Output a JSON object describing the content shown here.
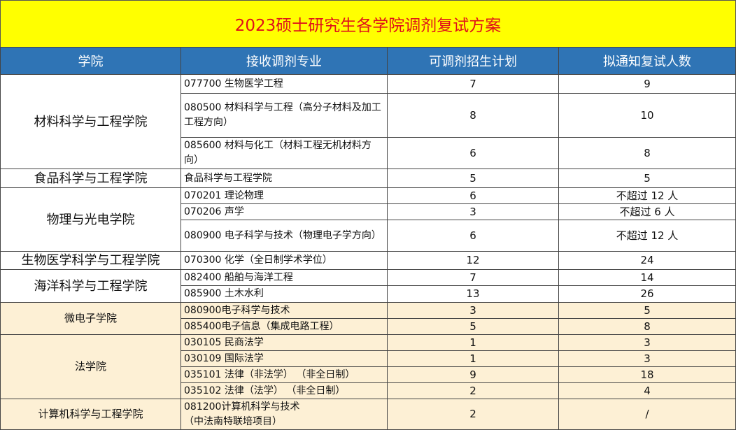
{
  "title": "2023硕士研究生各学院调剂复试方案",
  "table": {
    "header": [
      "学院",
      "接收调剂专业",
      "可调剂招生计划",
      "拟通知复试人数"
    ],
    "groups": [
      {
        "college": "材料科学与工程学院",
        "rows": [
          [
            "077700 生物医学工程",
            7,
            9
          ],
          [
            "080500 材料科学与工程（高分子材料及加工工程方向）",
            8,
            10
          ],
          [
            "085600 材料与化工（材料工程无机材料方向）",
            6,
            8
          ]
        ]
      },
      {
        "college": "食品科学与工程学院",
        "rows": [
          [
            "食品科学与工程学院",
            5,
            5
          ]
        ]
      },
      {
        "college": "物理与光电学院",
        "rows": [
          [
            "070201 理论物理",
            6,
            "不超过 12 人"
          ],
          [
            "070206 声学",
            3,
            "不超过 6 人"
          ],
          [
            "080900 电子科学与技术（物理电子学方向）",
            6,
            "不超过 12 人"
          ]
        ]
      },
      {
        "college": "生物医学科学与工程学院",
        "rows": [
          [
            "070300 化学（全日制学术学位）",
            12,
            24
          ]
        ]
      },
      {
        "college": "海洋科学与工程学院",
        "rows": [
          [
            "082400 船舶与海洋工程",
            7,
            14
          ],
          [
            "085900 土木水利",
            13,
            26
          ]
        ]
      },
      {
        "college": "微电子学院",
        "rows": [
          [
            "080900电子科学与技术",
            3,
            5
          ],
          [
            "085400电子信息（集成电路工程）",
            5,
            8
          ]
        ]
      },
      {
        "college": "法学院",
        "rows": [
          [
            "030105 民商法学",
            1,
            3
          ],
          [
            "030109 国际法学",
            1,
            3
          ],
          [
            "035101 法律（非法学）  （非全日制）",
            9,
            18
          ],
          [
            "035102 法律（法学）  （非全日制）",
            2,
            4
          ]
        ]
      },
      {
        "college": "计算机科学与工程学院",
        "rows": [
          [
            "081200计算机科学与技术\n（中法南特联培项目）",
            2,
            "/"
          ]
        ]
      }
    ]
  }
}
